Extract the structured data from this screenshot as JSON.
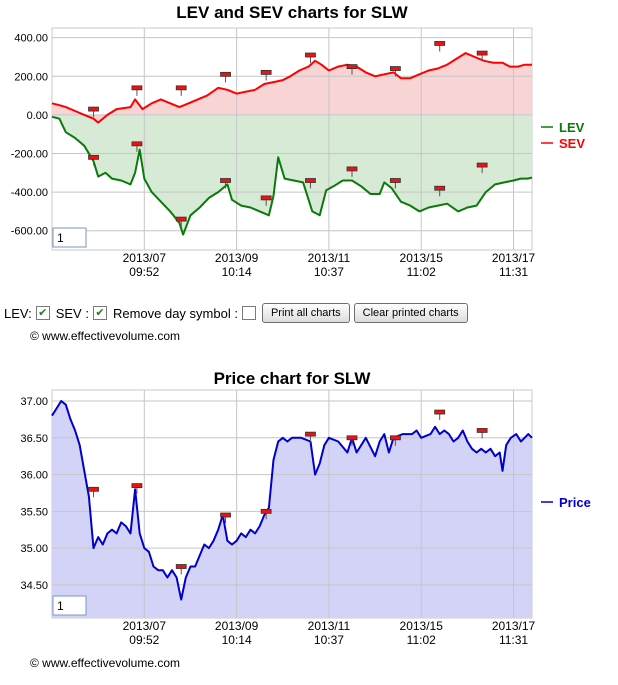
{
  "charts": [
    {
      "title": "LEV and SEV charts for SLW",
      "ylim": [
        -700,
        450
      ],
      "y_ticks": [
        {
          "v": 400,
          "label": "400.00"
        },
        {
          "v": 200,
          "label": "200.00"
        },
        {
          "v": 0,
          "label": "0.00"
        },
        {
          "v": -200,
          "label": "-200.00"
        },
        {
          "v": -400,
          "label": "-400.00"
        },
        {
          "v": -600,
          "label": "-600.00"
        }
      ],
      "page_box": "1"
    },
    {
      "title": "Price chart for SLW",
      "ylim": [
        34.05,
        37.15
      ],
      "y_ticks": [
        {
          "v": 37.0,
          "label": "37.00"
        },
        {
          "v": 36.5,
          "label": "36.50"
        },
        {
          "v": 36.0,
          "label": "36.00"
        },
        {
          "v": 35.5,
          "label": "35.50"
        },
        {
          "v": 35.0,
          "label": "35.00"
        },
        {
          "v": 34.5,
          "label": "34.50"
        }
      ],
      "page_box": "1"
    }
  ],
  "x_ticks": [
    {
      "x": 100,
      "date": "2013/07",
      "time": "09:52"
    },
    {
      "x": 200,
      "date": "2013/09",
      "time": "10:14"
    },
    {
      "x": 300,
      "date": "2013/11",
      "time": "10:37"
    },
    {
      "x": 400,
      "date": "2013/15",
      "time": "11:02"
    },
    {
      "x": 500,
      "date": "2013/17",
      "time": "11:31"
    }
  ],
  "chart_data": [
    {
      "type": "area",
      "title": "LEV and SEV charts for SLW",
      "xlabel": "",
      "ylabel": "",
      "xlim": [
        0,
        520
      ],
      "ylim": [
        -700,
        450
      ],
      "grid": true,
      "legend": "right",
      "series": [
        {
          "name": "LEV",
          "color": "#0a7a0a",
          "fill": "#d6ead6",
          "points": [
            [
              0,
              -10
            ],
            [
              8,
              -20
            ],
            [
              15,
              -90
            ],
            [
              25,
              -120
            ],
            [
              35,
              -160
            ],
            [
              45,
              -240
            ],
            [
              50,
              -320
            ],
            [
              58,
              -300
            ],
            [
              65,
              -330
            ],
            [
              75,
              -340
            ],
            [
              85,
              -360
            ],
            [
              90,
              -300
            ],
            [
              95,
              -180
            ],
            [
              100,
              -330
            ],
            [
              108,
              -400
            ],
            [
              118,
              -450
            ],
            [
              128,
              -500
            ],
            [
              138,
              -560
            ],
            [
              142,
              -620
            ],
            [
              150,
              -520
            ],
            [
              160,
              -480
            ],
            [
              170,
              -430
            ],
            [
              180,
              -400
            ],
            [
              190,
              -360
            ],
            [
              195,
              -440
            ],
            [
              205,
              -470
            ],
            [
              215,
              -480
            ],
            [
              225,
              -500
            ],
            [
              235,
              -520
            ],
            [
              240,
              -420
            ],
            [
              245,
              -220
            ],
            [
              252,
              -330
            ],
            [
              262,
              -340
            ],
            [
              272,
              -350
            ],
            [
              282,
              -500
            ],
            [
              290,
              -520
            ],
            [
              297,
              -390
            ],
            [
              305,
              -370
            ],
            [
              315,
              -340
            ],
            [
              325,
              -340
            ],
            [
              335,
              -370
            ],
            [
              345,
              -410
            ],
            [
              355,
              -410
            ],
            [
              360,
              -350
            ],
            [
              368,
              -380
            ],
            [
              378,
              -450
            ],
            [
              388,
              -470
            ],
            [
              398,
              -500
            ],
            [
              408,
              -480
            ],
            [
              418,
              -470
            ],
            [
              428,
              -460
            ],
            [
              440,
              -500
            ],
            [
              450,
              -480
            ],
            [
              460,
              -470
            ],
            [
              470,
              -400
            ],
            [
              480,
              -360
            ],
            [
              490,
              -350
            ],
            [
              500,
              -340
            ],
            [
              508,
              -330
            ],
            [
              515,
              -330
            ],
            [
              520,
              -325
            ]
          ]
        },
        {
          "name": "SEV",
          "color": "#ff0000",
          "fill": "#f8d4d4",
          "points": [
            [
              0,
              60
            ],
            [
              8,
              50
            ],
            [
              15,
              40
            ],
            [
              25,
              20
            ],
            [
              35,
              0
            ],
            [
              45,
              -20
            ],
            [
              50,
              -40
            ],
            [
              60,
              0
            ],
            [
              70,
              30
            ],
            [
              85,
              40
            ],
            [
              90,
              80
            ],
            [
              98,
              30
            ],
            [
              108,
              60
            ],
            [
              118,
              80
            ],
            [
              128,
              60
            ],
            [
              138,
              40
            ],
            [
              148,
              60
            ],
            [
              158,
              80
            ],
            [
              168,
              100
            ],
            [
              180,
              140
            ],
            [
              190,
              130
            ],
            [
              200,
              110
            ],
            [
              210,
              120
            ],
            [
              220,
              130
            ],
            [
              230,
              160
            ],
            [
              240,
              170
            ],
            [
              250,
              180
            ],
            [
              258,
              200
            ],
            [
              268,
              230
            ],
            [
              278,
              250
            ],
            [
              285,
              280
            ],
            [
              292,
              260
            ],
            [
              300,
              230
            ],
            [
              310,
              250
            ],
            [
              320,
              260
            ],
            [
              330,
              250
            ],
            [
              340,
              220
            ],
            [
              350,
              200
            ],
            [
              360,
              210
            ],
            [
              370,
              220
            ],
            [
              378,
              190
            ],
            [
              388,
              190
            ],
            [
              398,
              210
            ],
            [
              408,
              230
            ],
            [
              418,
              240
            ],
            [
              428,
              260
            ],
            [
              438,
              290
            ],
            [
              448,
              320
            ],
            [
              458,
              300
            ],
            [
              468,
              280
            ],
            [
              478,
              270
            ],
            [
              488,
              270
            ],
            [
              496,
              250
            ],
            [
              505,
              250
            ],
            [
              512,
              260
            ],
            [
              520,
              260
            ]
          ]
        }
      ],
      "day_markers": {
        "LEV": [
          [
            45,
            -220
          ],
          [
            92,
            -150
          ],
          [
            140,
            -540
          ],
          [
            188,
            -340
          ],
          [
            232,
            -430
          ],
          [
            280,
            -340
          ],
          [
            325,
            -280
          ],
          [
            372,
            -340
          ],
          [
            420,
            -380
          ],
          [
            466,
            -260
          ]
        ],
        "SEV": [
          [
            45,
            30
          ],
          [
            92,
            140
          ],
          [
            140,
            140
          ],
          [
            188,
            210
          ],
          [
            232,
            220
          ],
          [
            280,
            310
          ],
          [
            325,
            250
          ],
          [
            372,
            240
          ],
          [
            420,
            370
          ],
          [
            466,
            320
          ]
        ]
      }
    },
    {
      "type": "area",
      "title": "Price chart for SLW",
      "xlabel": "",
      "ylabel": "",
      "xlim": [
        0,
        520
      ],
      "ylim": [
        34.05,
        37.15
      ],
      "grid": true,
      "legend": "right",
      "series": [
        {
          "name": "Price",
          "color": "#0000cc",
          "fill": "#d3d3f7",
          "points": [
            [
              0,
              36.8
            ],
            [
              5,
              36.9
            ],
            [
              10,
              37.0
            ],
            [
              15,
              36.95
            ],
            [
              20,
              36.75
            ],
            [
              25,
              36.6
            ],
            [
              30,
              36.4
            ],
            [
              35,
              36.05
            ],
            [
              40,
              35.7
            ],
            [
              45,
              35.0
            ],
            [
              50,
              35.15
            ],
            [
              55,
              35.05
            ],
            [
              60,
              35.2
            ],
            [
              65,
              35.25
            ],
            [
              70,
              35.2
            ],
            [
              75,
              35.35
            ],
            [
              80,
              35.3
            ],
            [
              85,
              35.2
            ],
            [
              90,
              35.8
            ],
            [
              95,
              35.2
            ],
            [
              100,
              35.0
            ],
            [
              105,
              34.95
            ],
            [
              110,
              34.75
            ],
            [
              115,
              34.7
            ],
            [
              120,
              34.7
            ],
            [
              125,
              34.6
            ],
            [
              130,
              34.7
            ],
            [
              135,
              34.6
            ],
            [
              140,
              34.3
            ],
            [
              145,
              34.6
            ],
            [
              150,
              34.75
            ],
            [
              155,
              34.75
            ],
            [
              160,
              34.9
            ],
            [
              165,
              35.05
            ],
            [
              170,
              35.0
            ],
            [
              175,
              35.1
            ],
            [
              180,
              35.25
            ],
            [
              185,
              35.45
            ],
            [
              190,
              35.1
            ],
            [
              195,
              35.05
            ],
            [
              200,
              35.1
            ],
            [
              205,
              35.2
            ],
            [
              210,
              35.15
            ],
            [
              215,
              35.25
            ],
            [
              220,
              35.2
            ],
            [
              225,
              35.3
            ],
            [
              230,
              35.45
            ],
            [
              235,
              35.55
            ],
            [
              240,
              36.2
            ],
            [
              245,
              36.45
            ],
            [
              250,
              36.5
            ],
            [
              255,
              36.45
            ],
            [
              260,
              36.5
            ],
            [
              270,
              36.5
            ],
            [
              280,
              36.45
            ],
            [
              285,
              36.0
            ],
            [
              290,
              36.15
            ],
            [
              295,
              36.4
            ],
            [
              300,
              36.5
            ],
            [
              310,
              36.45
            ],
            [
              320,
              36.3
            ],
            [
              325,
              36.5
            ],
            [
              330,
              36.3
            ],
            [
              335,
              36.4
            ],
            [
              340,
              36.5
            ],
            [
              350,
              36.25
            ],
            [
              355,
              36.45
            ],
            [
              360,
              36.55
            ],
            [
              365,
              36.3
            ],
            [
              370,
              36.5
            ],
            [
              380,
              36.55
            ],
            [
              390,
              36.55
            ],
            [
              395,
              36.6
            ],
            [
              400,
              36.5
            ],
            [
              410,
              36.55
            ],
            [
              415,
              36.65
            ],
            [
              420,
              36.55
            ],
            [
              425,
              36.6
            ],
            [
              430,
              36.55
            ],
            [
              435,
              36.45
            ],
            [
              440,
              36.5
            ],
            [
              445,
              36.6
            ],
            [
              450,
              36.45
            ],
            [
              455,
              36.35
            ],
            [
              460,
              36.3
            ],
            [
              465,
              36.35
            ],
            [
              470,
              36.3
            ],
            [
              475,
              36.35
            ],
            [
              480,
              36.25
            ],
            [
              485,
              36.3
            ],
            [
              488,
              36.05
            ],
            [
              492,
              36.4
            ],
            [
              497,
              36.5
            ],
            [
              503,
              36.55
            ],
            [
              508,
              36.45
            ],
            [
              512,
              36.5
            ],
            [
              516,
              36.55
            ],
            [
              520,
              36.5
            ]
          ]
        }
      ],
      "day_markers": {
        "Price": [
          [
            45,
            35.8
          ],
          [
            92,
            35.85
          ],
          [
            140,
            34.75
          ],
          [
            188,
            35.45
          ],
          [
            232,
            35.5
          ],
          [
            280,
            36.55
          ],
          [
            325,
            36.5
          ],
          [
            372,
            36.5
          ],
          [
            420,
            36.85
          ],
          [
            466,
            36.6
          ]
        ]
      }
    }
  ],
  "controls": {
    "lev_label": "LEV:",
    "sev_label": "SEV :",
    "remove_day_label": "Remove day symbol :",
    "print_all_label": "Print all charts",
    "clear_printed_label": "Clear printed charts"
  },
  "copyright": "© www.effectivevolume.com"
}
